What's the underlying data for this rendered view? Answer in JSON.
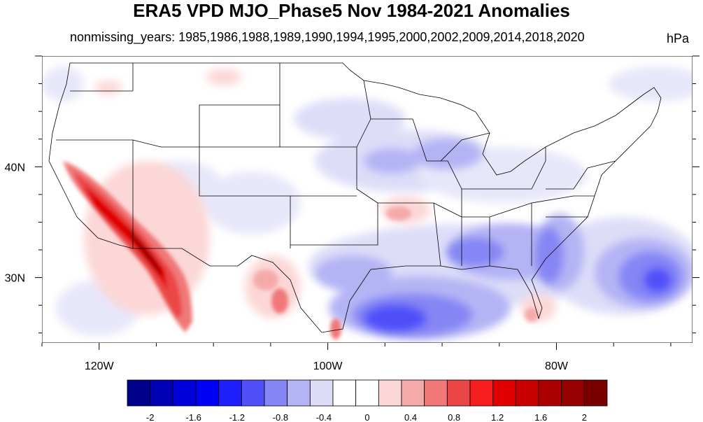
{
  "title": "ERA5 VPD MJO_Phase5 Nov 1984-2021 Anomalies",
  "subtitle": "nonmissing_years: 1985,1986,1988,1989,1990,1994,1995,2000,2002,2009,2014,2018,2020",
  "units": "hPa",
  "axes": {
    "lon_ticks": [
      {
        "lon": -120,
        "label": "120W"
      },
      {
        "lon": -100,
        "label": "100W"
      },
      {
        "lon": -80,
        "label": "80W"
      }
    ],
    "lat_ticks": [
      {
        "lat": 40,
        "label": "40N"
      },
      {
        "lat": 30,
        "label": "30N"
      }
    ]
  },
  "colorbar": {
    "labels": [
      "-2",
      "-1.6",
      "-1.2",
      "-0.8",
      "-0.4",
      "0",
      "0.4",
      "0.8",
      "1.2",
      "1.6",
      "2"
    ],
    "colors": [
      "#00008b",
      "#0000b4",
      "#0000d8",
      "#0000f5",
      "#1f1ffc",
      "#5050fa",
      "#8585f5",
      "#b4b4f5",
      "#dcdcf8",
      "#ffffff",
      "#ffffff",
      "#fcd7d7",
      "#f5aaaa",
      "#f07878",
      "#eb4646",
      "#f51d1d",
      "#e00000",
      "#c80000",
      "#aa0000",
      "#960000",
      "#7a0000"
    ]
  },
  "regions": {
    "california_anomaly": "strong positive",
    "gulf_of_mexico_anomaly": "negative",
    "southeast_atlantic_anomaly": "negative"
  }
}
